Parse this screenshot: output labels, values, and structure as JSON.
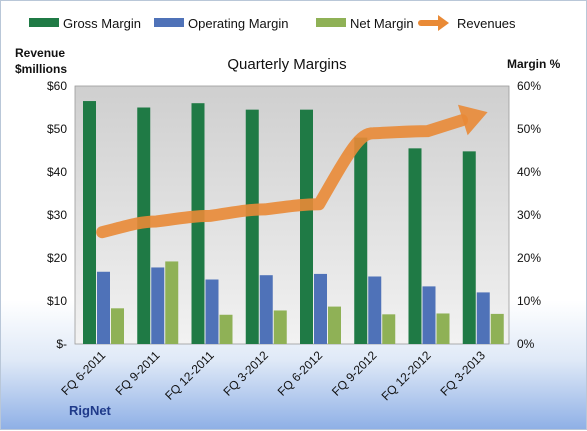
{
  "chart_data": {
    "type": "bar",
    "title": "Quarterly Margins",
    "left_axis_title": [
      "Revenue",
      "$millions"
    ],
    "right_axis_title": "Margin %",
    "brand": "RigNet",
    "categories": [
      "FQ 6-2011",
      "FQ 9-2011",
      "FQ 12-2011",
      "FQ 3-2012",
      "FQ 6-2012",
      "FQ 9-2012",
      "FQ 12-2012",
      "FQ 3-2013"
    ],
    "left_ticks": [
      "$-",
      "$10",
      "$20",
      "$30",
      "$40",
      "$50",
      "$60"
    ],
    "right_ticks": [
      "0%",
      "10%",
      "20%",
      "30%",
      "40%",
      "50%",
      "60%"
    ],
    "left_ylim": [
      0,
      60
    ],
    "right_ylim": [
      0,
      60
    ],
    "legend_position": "top",
    "grid": false,
    "series": [
      {
        "name": "Gross Margin",
        "axis": "right",
        "color": "#1f7a45",
        "values": [
          56.5,
          55.0,
          56.0,
          54.5,
          54.5,
          48.0,
          45.5,
          44.8
        ]
      },
      {
        "name": "Operating Margin",
        "axis": "right",
        "color": "#4f72b8",
        "values": [
          16.8,
          17.8,
          15.0,
          16.0,
          16.3,
          15.7,
          13.4,
          12.0
        ]
      },
      {
        "name": "Net Margin",
        "axis": "right",
        "color": "#8fb156",
        "values": [
          8.3,
          19.2,
          6.8,
          7.8,
          8.7,
          6.9,
          7.1,
          7.0
        ]
      },
      {
        "name": "Revenues",
        "axis": "left",
        "type": "line",
        "color": "#e98a36",
        "values": [
          26.0,
          28.5,
          29.8,
          31.3,
          32.5,
          49.0,
          49.5,
          53.5
        ]
      }
    ]
  }
}
